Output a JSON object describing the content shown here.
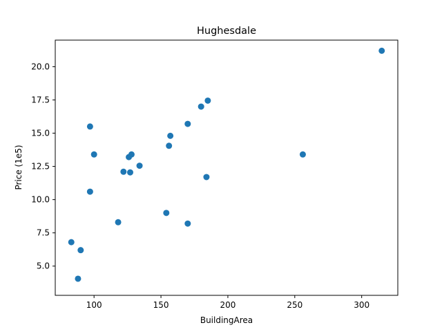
{
  "chart_data": {
    "type": "scatter",
    "title": "Hughesdale",
    "xlabel": "BuildingArea",
    "ylabel": "Price (1e5)",
    "xlim": [
      71,
      327
    ],
    "ylim": [
      2.8,
      22.0
    ],
    "xticks": [
      100,
      150,
      200,
      250,
      300
    ],
    "yticks": [
      5.0,
      7.5,
      10.0,
      12.5,
      15.0,
      17.5,
      20.0
    ],
    "grid": false,
    "marker_color": "#1f77b4",
    "points": [
      {
        "x": 83,
        "y": 6.8
      },
      {
        "x": 88,
        "y": 4.05
      },
      {
        "x": 90,
        "y": 6.2
      },
      {
        "x": 97,
        "y": 15.5
      },
      {
        "x": 97,
        "y": 10.6
      },
      {
        "x": 100,
        "y": 13.4
      },
      {
        "x": 118,
        "y": 8.3
      },
      {
        "x": 122,
        "y": 12.1
      },
      {
        "x": 126,
        "y": 13.2
      },
      {
        "x": 127,
        "y": 12.05
      },
      {
        "x": 128,
        "y": 13.4
      },
      {
        "x": 134,
        "y": 12.55
      },
      {
        "x": 154,
        "y": 9.0
      },
      {
        "x": 156,
        "y": 14.05
      },
      {
        "x": 157,
        "y": 14.8
      },
      {
        "x": 170,
        "y": 15.7
      },
      {
        "x": 170,
        "y": 8.2
      },
      {
        "x": 180,
        "y": 17.0
      },
      {
        "x": 184,
        "y": 11.7
      },
      {
        "x": 185,
        "y": 17.45
      },
      {
        "x": 256,
        "y": 13.4
      },
      {
        "x": 315,
        "y": 21.2
      }
    ]
  }
}
